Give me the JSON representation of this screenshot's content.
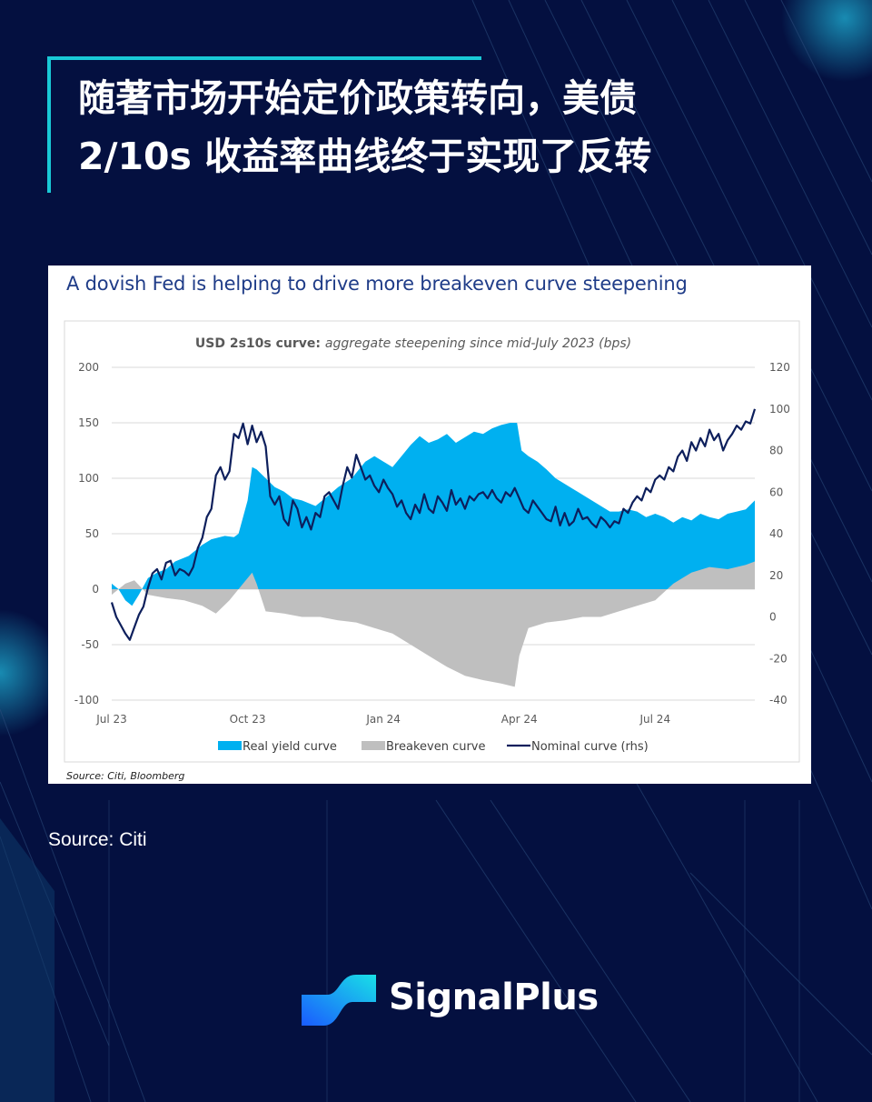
{
  "page": {
    "title_line1": "随著市场开始定价政策转向，美债",
    "title_line2": "2/10s 收益率曲线终于实现了反转",
    "source": "Source: Citi",
    "brand": "SignalPlus",
    "colors": {
      "background": "#041040",
      "accent": "#19c9d6"
    }
  },
  "card": {
    "title": "A dovish Fed is helping to drive more breakeven curve steepening",
    "source": "Source: Citi, Bloomberg"
  },
  "chart_data": {
    "type": "area",
    "title_bold": "USD 2s10s curve:",
    "title_italic": "aggregate steepening since mid-July 2023 (bps)",
    "x_tick_labels": [
      "Jul 23",
      "Oct 23",
      "Jan 24",
      "Apr 24",
      "Jul 24"
    ],
    "x_tick_months": [
      0,
      3,
      6,
      9,
      12
    ],
    "x_range_months": [
      0,
      14.2
    ],
    "ylim_left": [
      -100,
      200
    ],
    "yticks_left": [
      -100,
      -50,
      0,
      50,
      100,
      150,
      200
    ],
    "ylim_right": [
      -40,
      120
    ],
    "yticks_right": [
      -40,
      -20,
      0,
      20,
      40,
      60,
      80,
      100,
      120
    ],
    "grid": true,
    "legend_position": "bottom",
    "series": [
      {
        "name": "Real yield curve",
        "kind": "area",
        "axis": "left",
        "color": "#00b0f0",
        "x": [
          0,
          0.15,
          0.3,
          0.45,
          0.6,
          0.8,
          1.0,
          1.2,
          1.4,
          1.7,
          2.0,
          2.2,
          2.5,
          2.7,
          2.8,
          3.0,
          3.1,
          3.2,
          3.4,
          3.6,
          3.8,
          4.0,
          4.2,
          4.5,
          4.8,
          5.0,
          5.3,
          5.6,
          5.8,
          6.0,
          6.2,
          6.4,
          6.6,
          6.8,
          7.0,
          7.2,
          7.4,
          7.6,
          7.8,
          8.0,
          8.2,
          8.4,
          8.6,
          8.8,
          8.95,
          9.05,
          9.2,
          9.4,
          9.6,
          9.8,
          10.0,
          10.2,
          10.4,
          10.6,
          10.8,
          11.0,
          11.2,
          11.4,
          11.6,
          11.8,
          12.0,
          12.2,
          12.4,
          12.6,
          12.8,
          13.0,
          13.2,
          13.4,
          13.6,
          13.8,
          14.0,
          14.2
        ],
        "y": [
          5,
          0,
          -10,
          -15,
          -5,
          10,
          15,
          18,
          25,
          30,
          40,
          45,
          48,
          47,
          50,
          80,
          110,
          108,
          100,
          92,
          88,
          82,
          80,
          75,
          85,
          92,
          100,
          115,
          120,
          115,
          110,
          120,
          130,
          138,
          132,
          135,
          140,
          132,
          137,
          142,
          140,
          145,
          148,
          150,
          150,
          125,
          120,
          115,
          108,
          100,
          95,
          90,
          85,
          80,
          75,
          70,
          70,
          72,
          70,
          65,
          68,
          65,
          60,
          65,
          62,
          68,
          65,
          63,
          68,
          70,
          72,
          80
        ]
      },
      {
        "name": "Breakeven curve",
        "kind": "area",
        "axis": "left",
        "color": "#bfbfbf",
        "x": [
          0,
          0.3,
          0.5,
          0.8,
          1.2,
          1.6,
          2.0,
          2.3,
          2.6,
          2.9,
          3.1,
          3.2,
          3.4,
          3.8,
          4.2,
          4.6,
          5.0,
          5.4,
          5.8,
          6.2,
          6.6,
          7.0,
          7.4,
          7.8,
          8.2,
          8.6,
          8.9,
          9.0,
          9.2,
          9.6,
          10.0,
          10.4,
          10.8,
          11.2,
          11.6,
          12.0,
          12.4,
          12.8,
          13.2,
          13.6,
          14.0,
          14.2
        ],
        "y": [
          -5,
          5,
          8,
          -5,
          -8,
          -10,
          -15,
          -22,
          -10,
          5,
          15,
          5,
          -20,
          -22,
          -25,
          -25,
          -28,
          -30,
          -35,
          -40,
          -50,
          -60,
          -70,
          -78,
          -82,
          -85,
          -88,
          -60,
          -35,
          -30,
          -28,
          -25,
          -25,
          -20,
          -15,
          -10,
          5,
          15,
          20,
          18,
          22,
          25
        ]
      },
      {
        "name": "Nominal curve (rhs)",
        "kind": "line",
        "axis": "right",
        "color": "#0d1f5c",
        "x": [
          0,
          0.1,
          0.2,
          0.3,
          0.4,
          0.5,
          0.6,
          0.7,
          0.8,
          0.9,
          1.0,
          1.1,
          1.2,
          1.3,
          1.4,
          1.5,
          1.6,
          1.7,
          1.8,
          1.9,
          2.0,
          2.1,
          2.2,
          2.3,
          2.4,
          2.5,
          2.6,
          2.7,
          2.8,
          2.9,
          3.0,
          3.1,
          3.2,
          3.3,
          3.4,
          3.5,
          3.6,
          3.7,
          3.8,
          3.9,
          4.0,
          4.1,
          4.2,
          4.3,
          4.4,
          4.5,
          4.6,
          4.7,
          4.8,
          4.9,
          5.0,
          5.1,
          5.2,
          5.3,
          5.4,
          5.5,
          5.6,
          5.7,
          5.8,
          5.9,
          6.0,
          6.1,
          6.2,
          6.3,
          6.4,
          6.5,
          6.6,
          6.7,
          6.8,
          6.9,
          7.0,
          7.1,
          7.2,
          7.3,
          7.4,
          7.5,
          7.6,
          7.7,
          7.8,
          7.9,
          8.0,
          8.1,
          8.2,
          8.3,
          8.4,
          8.5,
          8.6,
          8.7,
          8.8,
          8.9,
          9.0,
          9.1,
          9.2,
          9.3,
          9.4,
          9.5,
          9.6,
          9.7,
          9.8,
          9.9,
          10.0,
          10.1,
          10.2,
          10.3,
          10.4,
          10.5,
          10.6,
          10.7,
          10.8,
          10.9,
          11.0,
          11.1,
          11.2,
          11.3,
          11.4,
          11.5,
          11.6,
          11.7,
          11.8,
          11.9,
          12.0,
          12.1,
          12.2,
          12.3,
          12.4,
          12.5,
          12.6,
          12.7,
          12.8,
          12.9,
          13.0,
          13.1,
          13.2,
          13.3,
          13.4,
          13.5,
          13.6,
          13.7,
          13.8,
          13.9,
          14.0,
          14.1,
          14.2
        ],
        "y": [
          7,
          0,
          -4,
          -8,
          -11,
          -5,
          1,
          5,
          14,
          21,
          23,
          18,
          26,
          27,
          20,
          23,
          22,
          20,
          24,
          33,
          38,
          48,
          52,
          68,
          72,
          66,
          70,
          88,
          86,
          93,
          83,
          92,
          84,
          89,
          82,
          58,
          54,
          58,
          47,
          44,
          56,
          52,
          43,
          48,
          42,
          50,
          48,
          58,
          60,
          56,
          52,
          63,
          72,
          67,
          78,
          72,
          66,
          68,
          63,
          60,
          66,
          62,
          59,
          53,
          56,
          50,
          47,
          54,
          50,
          59,
          52,
          50,
          58,
          55,
          51,
          61,
          54,
          57,
          52,
          58,
          56,
          59,
          60,
          57,
          61,
          57,
          55,
          60,
          58,
          62,
          57,
          52,
          50,
          56,
          53,
          50,
          47,
          46,
          53,
          44,
          50,
          44,
          46,
          52,
          47,
          48,
          45,
          43,
          48,
          46,
          43,
          46,
          45,
          52,
          50,
          55,
          58,
          56,
          62,
          60,
          66,
          68,
          66,
          72,
          70,
          77,
          80,
          75,
          84,
          80,
          86,
          82,
          90,
          85,
          88,
          80,
          85,
          88,
          92,
          90,
          94,
          93,
          100
        ]
      }
    ]
  }
}
